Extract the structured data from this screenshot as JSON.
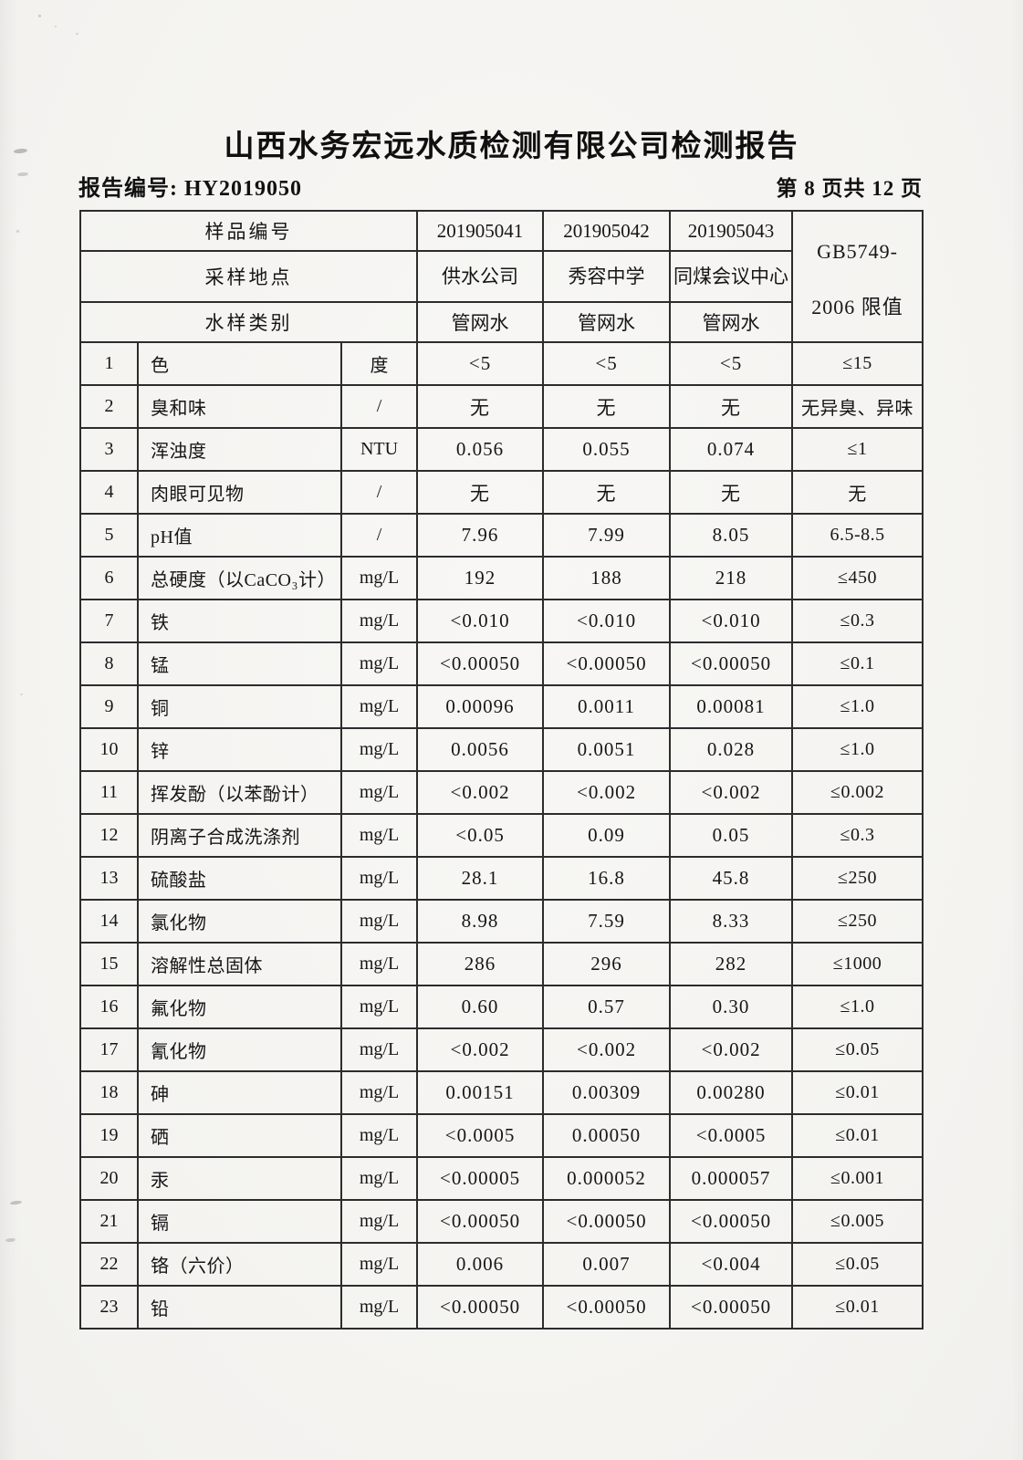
{
  "document": {
    "title": "山西水务宏远水质检测有限公司检测报告",
    "report_number": "报告编号: HY2019050",
    "page_indicator": "第 8 页共 12 页"
  },
  "table": {
    "header": {
      "sample_id_label": "样品编号",
      "sampling_site_label": "采样地点",
      "water_type_label": "水样类别",
      "sample_ids": [
        "201905041",
        "201905042",
        "201905043"
      ],
      "sampling_sites": [
        "供水公司",
        "秀容中学",
        "同煤会议中心"
      ],
      "water_types": [
        "管网水",
        "管网水",
        "管网水"
      ],
      "limit_column_line1": "GB5749-",
      "limit_column_line2": "2006 限值"
    },
    "rows": [
      {
        "no": "1",
        "param": "色",
        "unit": "度",
        "v1": "<5",
        "v2": "<5",
        "v3": "<5",
        "limit": "≤15"
      },
      {
        "no": "2",
        "param": "臭和味",
        "unit": "/",
        "v1": "无",
        "v2": "无",
        "v3": "无",
        "limit": "无异臭、异味"
      },
      {
        "no": "3",
        "param": "浑浊度",
        "unit": "NTU",
        "v1": "0.056",
        "v2": "0.055",
        "v3": "0.074",
        "limit": "≤1"
      },
      {
        "no": "4",
        "param": "肉眼可见物",
        "unit": "/",
        "v1": "无",
        "v2": "无",
        "v3": "无",
        "limit": "无"
      },
      {
        "no": "5",
        "param": "pH值",
        "unit": "/",
        "v1": "7.96",
        "v2": "7.99",
        "v3": "8.05",
        "limit": "6.5-8.5"
      },
      {
        "no": "6",
        "param": "总硬度（以CaCO₃计）",
        "unit": "mg/L",
        "v1": "192",
        "v2": "188",
        "v3": "218",
        "limit": "≤450"
      },
      {
        "no": "7",
        "param": "铁",
        "unit": "mg/L",
        "v1": "<0.010",
        "v2": "<0.010",
        "v3": "<0.010",
        "limit": "≤0.3"
      },
      {
        "no": "8",
        "param": "锰",
        "unit": "mg/L",
        "v1": "<0.00050",
        "v2": "<0.00050",
        "v3": "<0.00050",
        "limit": "≤0.1"
      },
      {
        "no": "9",
        "param": "铜",
        "unit": "mg/L",
        "v1": "0.00096",
        "v2": "0.0011",
        "v3": "0.00081",
        "limit": "≤1.0"
      },
      {
        "no": "10",
        "param": "锌",
        "unit": "mg/L",
        "v1": "0.0056",
        "v2": "0.0051",
        "v3": "0.028",
        "limit": "≤1.0"
      },
      {
        "no": "11",
        "param": "挥发酚（以苯酚计）",
        "unit": "mg/L",
        "v1": "<0.002",
        "v2": "<0.002",
        "v3": "<0.002",
        "limit": "≤0.002"
      },
      {
        "no": "12",
        "param": "阴离子合成洗涤剂",
        "unit": "mg/L",
        "v1": "<0.05",
        "v2": "0.09",
        "v3": "0.05",
        "limit": "≤0.3"
      },
      {
        "no": "13",
        "param": "硫酸盐",
        "unit": "mg/L",
        "v1": "28.1",
        "v2": "16.8",
        "v3": "45.8",
        "limit": "≤250"
      },
      {
        "no": "14",
        "param": "氯化物",
        "unit": "mg/L",
        "v1": "8.98",
        "v2": "7.59",
        "v3": "8.33",
        "limit": "≤250"
      },
      {
        "no": "15",
        "param": "溶解性总固体",
        "unit": "mg/L",
        "v1": "286",
        "v2": "296",
        "v3": "282",
        "limit": "≤1000"
      },
      {
        "no": "16",
        "param": "氟化物",
        "unit": "mg/L",
        "v1": "0.60",
        "v2": "0.57",
        "v3": "0.30",
        "limit": "≤1.0"
      },
      {
        "no": "17",
        "param": "氰化物",
        "unit": "mg/L",
        "v1": "<0.002",
        "v2": "<0.002",
        "v3": "<0.002",
        "limit": "≤0.05"
      },
      {
        "no": "18",
        "param": "砷",
        "unit": "mg/L",
        "v1": "0.00151",
        "v2": "0.00309",
        "v3": "0.00280",
        "limit": "≤0.01"
      },
      {
        "no": "19",
        "param": "硒",
        "unit": "mg/L",
        "v1": "<0.0005",
        "v2": "0.00050",
        "v3": "<0.0005",
        "limit": "≤0.01"
      },
      {
        "no": "20",
        "param": "汞",
        "unit": "mg/L",
        "v1": "<0.00005",
        "v2": "0.000052",
        "v3": "0.000057",
        "limit": "≤0.001"
      },
      {
        "no": "21",
        "param": "镉",
        "unit": "mg/L",
        "v1": "<0.00050",
        "v2": "<0.00050",
        "v3": "<0.00050",
        "limit": "≤0.005"
      },
      {
        "no": "22",
        "param": "铬（六价）",
        "unit": "mg/L",
        "v1": "0.006",
        "v2": "0.007",
        "v3": "<0.004",
        "limit": "≤0.05"
      },
      {
        "no": "23",
        "param": "铅",
        "unit": "mg/L",
        "v1": "<0.00050",
        "v2": "<0.00050",
        "v3": "<0.00050",
        "limit": "≤0.01"
      }
    ]
  }
}
